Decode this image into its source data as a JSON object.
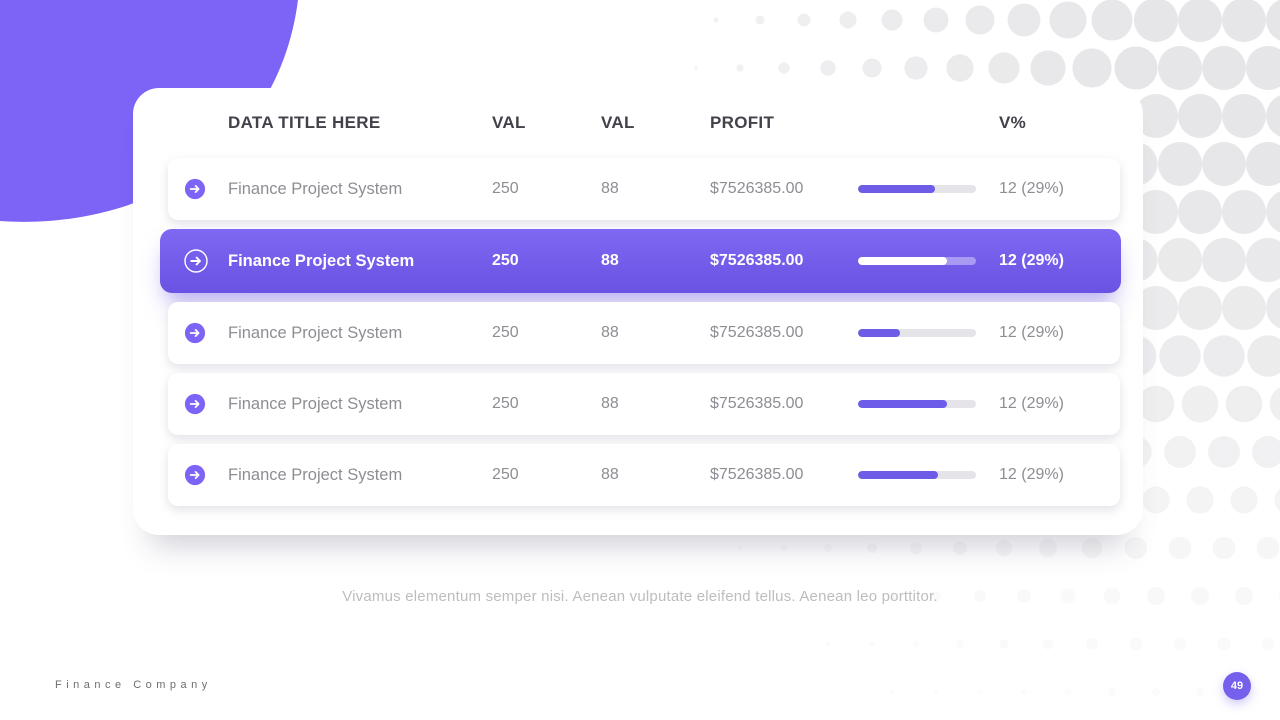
{
  "table": {
    "headers": [
      "DATA TITLE HERE",
      "VAL",
      "VAL",
      "PROFIT",
      "V%"
    ],
    "rows": [
      {
        "name": "Finance Project System",
        "val1": "250",
        "val2": "88",
        "profit": "$7526385.00",
        "progress_pct": 65,
        "vpct": "12 (29%)",
        "highlighted": false
      },
      {
        "name": "Finance Project System",
        "val1": "250",
        "val2": "88",
        "profit": "$7526385.00",
        "progress_pct": 75,
        "vpct": "12 (29%)",
        "highlighted": true
      },
      {
        "name": "Finance Project System",
        "val1": "250",
        "val2": "88",
        "profit": "$7526385.00",
        "progress_pct": 36,
        "vpct": "12 (29%)",
        "highlighted": false
      },
      {
        "name": "Finance Project System",
        "val1": "250",
        "val2": "88",
        "profit": "$7526385.00",
        "progress_pct": 75,
        "vpct": "12 (29%)",
        "highlighted": false
      },
      {
        "name": "Finance Project System",
        "val1": "250",
        "val2": "88",
        "profit": "$7526385.00",
        "progress_pct": 68,
        "vpct": "12 (29%)",
        "highlighted": false
      }
    ]
  },
  "icons": {
    "row_action": "arrow-right"
  },
  "caption": "Vivamus elementum semper nisi. Aenean vulputate eleifend tellus. Aenean leo porttitor.",
  "footer": {
    "company": "Finance Company",
    "page_number": "49"
  },
  "colors": {
    "accent": "#7d63f6",
    "highlight_top": "#7f68f2",
    "highlight_bottom": "#6a52e3",
    "progress_fill": "#6c5ce7",
    "progress_track": "#e5e5e9",
    "dots": "#e6e6e8",
    "header_text": "#42424a",
    "row_text": "#8d8d94",
    "caption_text": "#bdbdc0",
    "footer_text": "#6e6e6e",
    "page_badge": "#7460ea"
  }
}
